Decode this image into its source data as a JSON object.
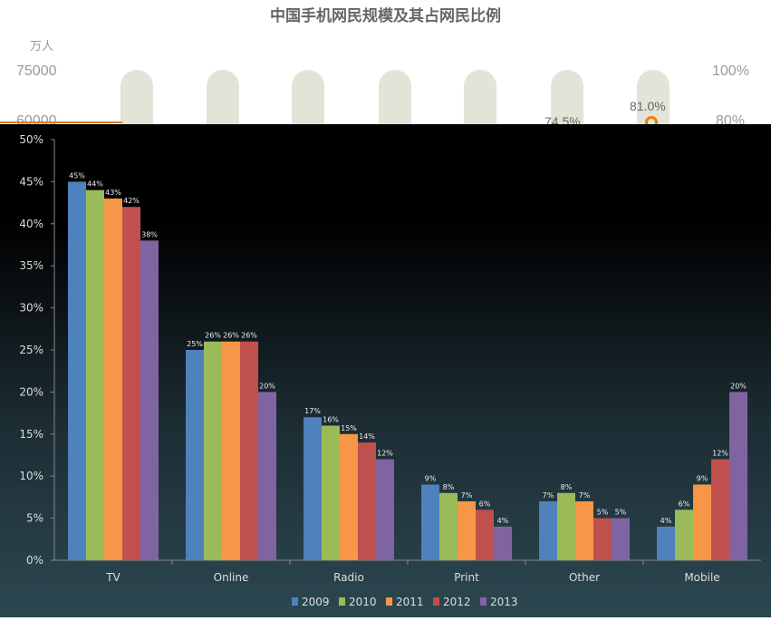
{
  "background_chart": {
    "title": "中国手机网民规模及其占网民比例",
    "unit": "万人",
    "left_ticks": [
      "75000",
      "60000"
    ],
    "right_ticks": [
      "100%",
      "80%"
    ],
    "labels": [
      "74.5%",
      "81.0%"
    ]
  },
  "chart_data": {
    "type": "bar",
    "categories": [
      "TV",
      "Online",
      "Radio",
      "Print",
      "Other",
      "Mobile"
    ],
    "series": [
      {
        "name": "2009",
        "color": "#4f81bd",
        "values": [
          45,
          25,
          17,
          9,
          7,
          4
        ]
      },
      {
        "name": "2010",
        "color": "#9bbb59",
        "values": [
          44,
          26,
          16,
          8,
          8,
          6
        ]
      },
      {
        "name": "2011",
        "color": "#f79646",
        "values": [
          43,
          26,
          15,
          7,
          7,
          9
        ]
      },
      {
        "name": "2012",
        "color": "#c0504d",
        "values": [
          42,
          26,
          14,
          6,
          5,
          12
        ]
      },
      {
        "name": "2013",
        "color": "#8064a2",
        "values": [
          38,
          20,
          12,
          4,
          5,
          20
        ]
      }
    ],
    "ylim": [
      0,
      50
    ],
    "yticks": [
      "0%",
      "5%",
      "10%",
      "15%",
      "20%",
      "25%",
      "30%",
      "35%",
      "40%",
      "45%",
      "50%"
    ],
    "legend": "bottom",
    "grid": false
  }
}
